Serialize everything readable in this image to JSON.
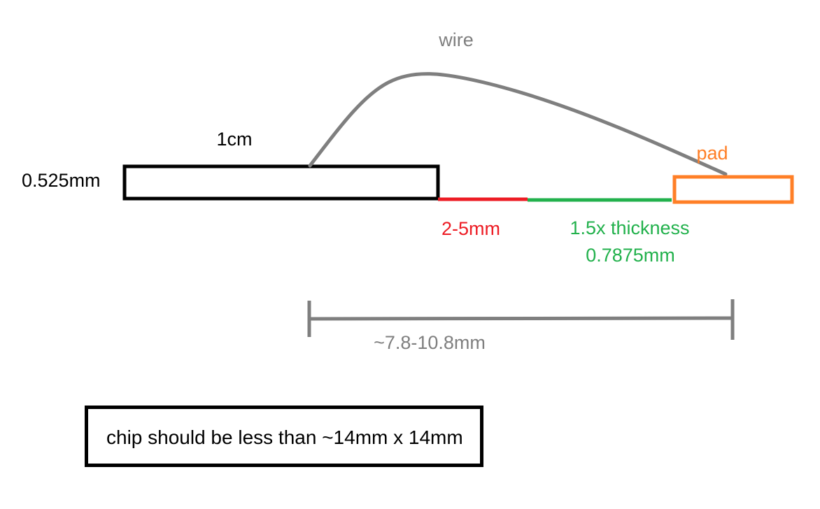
{
  "labels": {
    "wire": "wire",
    "chip_length": "1cm",
    "chip_thickness": "0.525mm",
    "pad": "pad",
    "gap_red": "2-5mm",
    "gap_green_line1": "1.5x thickness",
    "gap_green_line2": "0.7875mm",
    "span": "~7.8-10.8mm"
  },
  "note": {
    "text": "chip should be less than ~14mm x 14mm"
  },
  "colors": {
    "chip": "#000000",
    "wire": "#7f7f7f",
    "gap_red": "#ed1c24",
    "gap_green": "#22b14c",
    "pad": "#ff7f27",
    "dimension": "#7f7f7f"
  }
}
